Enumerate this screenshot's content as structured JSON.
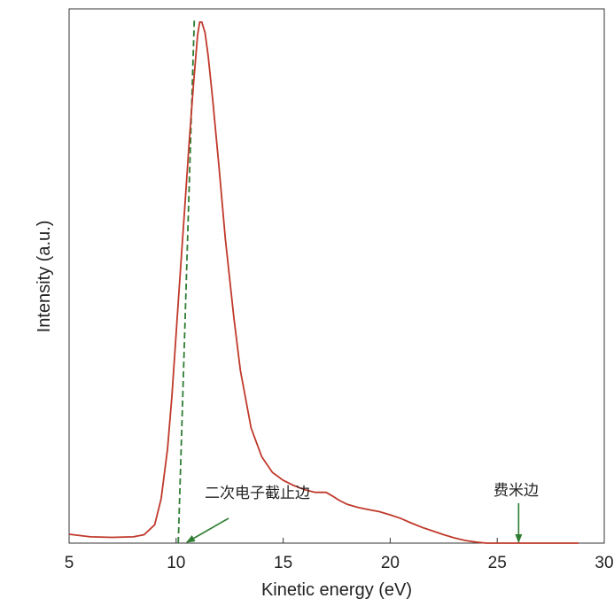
{
  "chart_data": {
    "type": "line",
    "title": "",
    "xlabel": "Kinetic energy (eV)",
    "ylabel": "Intensity (a.u.)",
    "xlim": [
      5,
      30
    ],
    "ylim": [
      0,
      1.0
    ],
    "xticks": [
      5,
      10,
      15,
      20,
      25,
      30
    ],
    "xtick_labels": [
      "5",
      "10",
      "15",
      "20",
      "25",
      "30"
    ],
    "yticks_shown": false,
    "grid": false,
    "colors": {
      "spectrum": "#c0392b",
      "fit_line": "#2e7d32",
      "arrow": "#2e7d32"
    },
    "series": [
      {
        "x": [
          5.0,
          6.0,
          7.0,
          8.0,
          8.5,
          9.0,
          9.3,
          9.6,
          9.8,
          10.0,
          10.2,
          10.4,
          10.6,
          10.8,
          11.0,
          11.1,
          11.2,
          11.35,
          11.5,
          11.7,
          12.0,
          12.3,
          12.7,
          13.0,
          13.5,
          14.0,
          14.5,
          15.0,
          15.5,
          16.0,
          16.5,
          17.0,
          17.3,
          17.6,
          18.0,
          18.5,
          19.0,
          19.5,
          20.0,
          20.5,
          21.0,
          21.5,
          22.0,
          22.5,
          23.0,
          23.5,
          24.0,
          24.5,
          25.0,
          25.5,
          26.0,
          27.0,
          28.0,
          28.8
        ],
        "y": [
          0.017,
          0.012,
          0.011,
          0.012,
          0.016,
          0.035,
          0.085,
          0.18,
          0.28,
          0.4,
          0.52,
          0.64,
          0.76,
          0.87,
          0.97,
          0.995,
          0.995,
          0.975,
          0.93,
          0.85,
          0.72,
          0.58,
          0.43,
          0.33,
          0.22,
          0.165,
          0.135,
          0.12,
          0.11,
          0.102,
          0.097,
          0.097,
          0.09,
          0.082,
          0.074,
          0.068,
          0.064,
          0.06,
          0.054,
          0.047,
          0.038,
          0.03,
          0.023,
          0.016,
          0.01,
          0.005,
          0.002,
          0.0,
          0.0,
          0.0,
          0.0,
          0.0,
          0.0,
          0.0
        ]
      }
    ],
    "fit_line": {
      "x": [
        10.1,
        10.85
      ],
      "y": [
        0.0,
        1.0
      ],
      "style": "dashed"
    },
    "annotations": [
      {
        "text": "二次电子截止边",
        "arrow_to": {
          "x": 10.5,
          "y": 0.0
        }
      },
      {
        "text": "费米边",
        "arrow_to": {
          "x": 26.0,
          "y": 0.0
        }
      }
    ]
  }
}
